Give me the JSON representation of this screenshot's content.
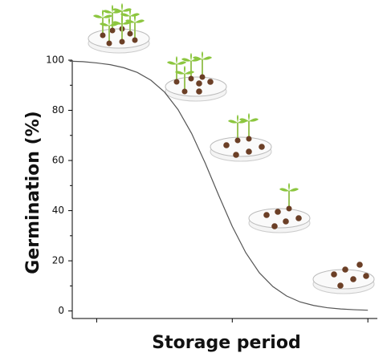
{
  "chart_data": {
    "type": "line",
    "xlabel": "Storage period",
    "ylabel": "Germination (%)",
    "x": [
      -0.2,
      -0.1,
      0,
      0.1,
      0.2,
      0.3,
      0.4,
      0.5,
      0.6,
      0.7,
      0.8,
      0.9,
      1.0,
      1.1,
      1.2,
      1.3,
      1.4,
      1.5,
      1.6,
      1.7,
      1.8,
      1.9,
      2.0
    ],
    "values": [
      99.6,
      99.4,
      98.9,
      98.2,
      97.0,
      95.1,
      92.0,
      87.3,
      80.3,
      70.8,
      59.0,
      46.1,
      33.7,
      23.2,
      15.2,
      9.7,
      6.0,
      3.6,
      2.2,
      1.3,
      0.8,
      0.5,
      0.3
    ],
    "color": "#555555",
    "xlim": [
      -0.18,
      2.07
    ],
    "xticks": [
      0,
      1,
      2
    ],
    "xtick_labels": false,
    "ylim": [
      -3,
      100
    ],
    "yticks": [
      0,
      20,
      40,
      60,
      80,
      100
    ],
    "yminor": [
      10,
      30,
      50,
      70,
      90
    ],
    "grid": false
  }
}
